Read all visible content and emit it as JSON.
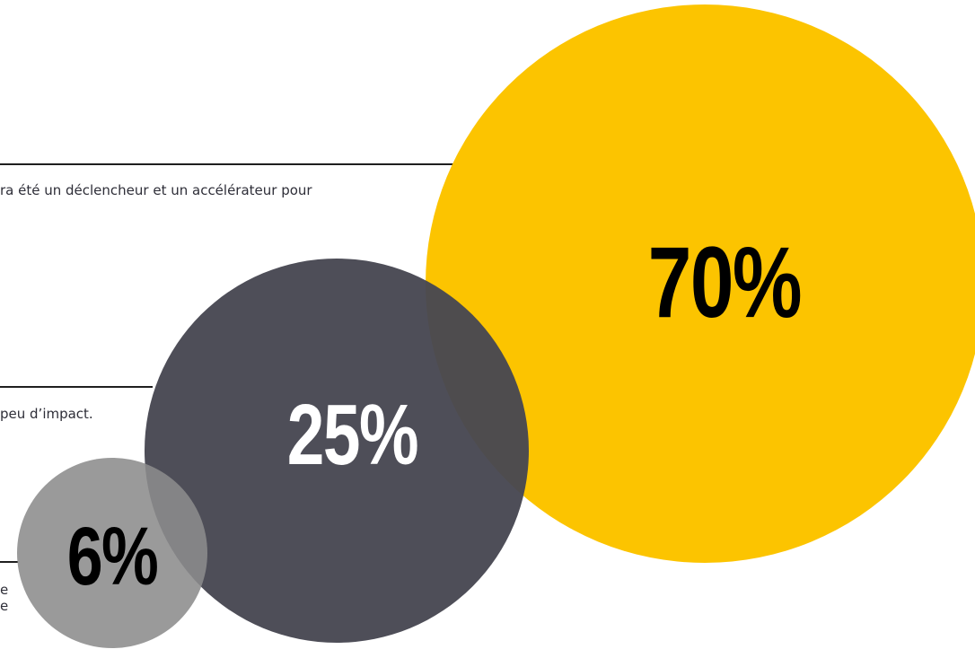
{
  "chart_data": {
    "type": "bubble",
    "series": [
      {
        "value": 70,
        "label": "70%",
        "color": "#fcc400",
        "text_color": "#000000",
        "statement": "ra été un déclencheur et un accélérateur pour"
      },
      {
        "value": 25,
        "label": "25%",
        "color": "#474751",
        "text_color": "#ffffff",
        "statement": "peu d’impact."
      },
      {
        "value": 6,
        "label": "6%",
        "color": "#8c8c8c",
        "text_color": "#000000",
        "statement": "e\ne"
      }
    ]
  }
}
